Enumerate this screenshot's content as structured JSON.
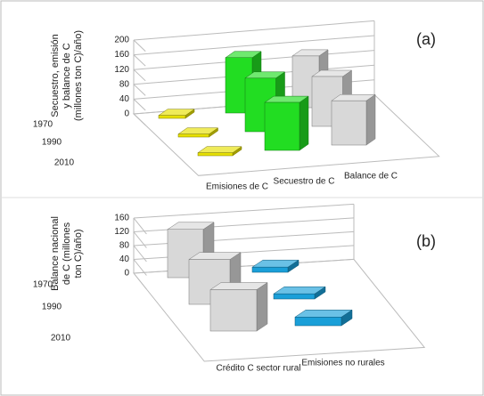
{
  "chart_data": [
    {
      "type": "bar3d",
      "panel_label": "(a)",
      "y_label": [
        "Secuestro, emisión",
        "y balance de C",
        "(millones ton C)/año)"
      ],
      "categories": [
        "1970",
        "1990",
        "2010"
      ],
      "series": [
        {
          "name": "Emisiones de C",
          "color": "#e6e000",
          "values": [
            8,
            8,
            8
          ]
        },
        {
          "name": "Secuestro de C",
          "color": "#22dd22",
          "values": [
            150,
            145,
            130
          ]
        },
        {
          "name": "Balance de C",
          "color": "#d8d8d8",
          "values": [
            140,
            135,
            120
          ]
        }
      ],
      "ylim": [
        0,
        200
      ],
      "yticks": [
        0,
        40,
        80,
        120,
        160,
        200
      ],
      "grid": true
    },
    {
      "type": "bar3d",
      "panel_label": "(b)",
      "y_label": [
        "Balance nacional",
        "de C (millones",
        "ton C)/año)"
      ],
      "categories": [
        "1970",
        "1990",
        "2010"
      ],
      "series": [
        {
          "name": "Crédito C sector rural",
          "color": "#d8d8d8",
          "values": [
            140,
            130,
            120
          ]
        },
        {
          "name": "Emisiones no rurales",
          "color": "#1a9fd8",
          "values": [
            15,
            15,
            25
          ]
        }
      ],
      "ylim": [
        0,
        160
      ],
      "yticks": [
        0,
        40,
        80,
        120,
        160
      ],
      "grid": true
    }
  ]
}
